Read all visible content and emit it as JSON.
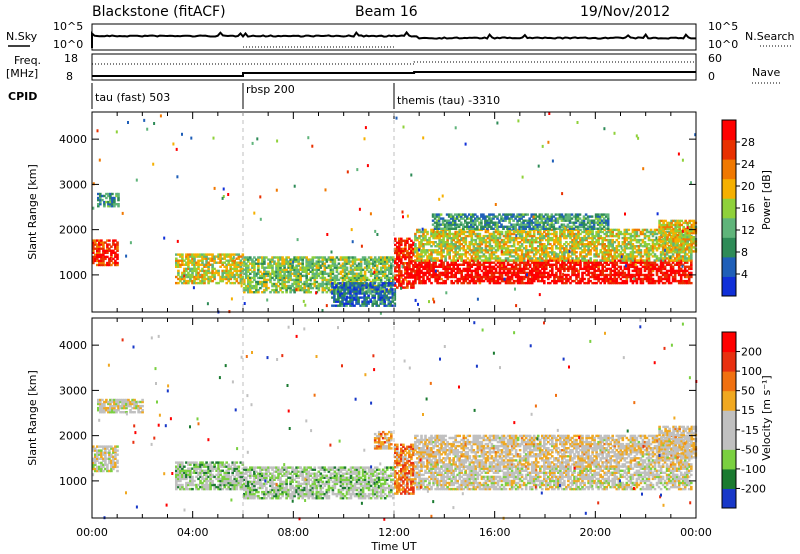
{
  "header": {
    "site": "Blackstone (fitACF)",
    "beam": "Beam 16",
    "date": "19/Nov/2012"
  },
  "nsky_panel": {
    "left_label": "N.Sky",
    "right_label": "N.Search",
    "left_ticks": [
      "10^5",
      "10^0"
    ],
    "right_ticks": [
      "10^5",
      "10^0"
    ]
  },
  "freq_panel": {
    "left_label_1": "Freq.",
    "left_label_2": "[MHz]",
    "right_label": "Nave",
    "left_ticks": [
      "18",
      "8"
    ],
    "right_ticks": [
      "60",
      "0"
    ]
  },
  "cpid": {
    "label": "CPID",
    "segments": [
      {
        "start_hour": 0,
        "text": "tau (fast) 503"
      },
      {
        "start_hour": 6,
        "text": "rbsp 200"
      },
      {
        "start_hour": 12,
        "text": "themis (tau) -3310"
      }
    ]
  },
  "colors": {
    "power_scale": [
      "#1030d8",
      "#1f5fb8",
      "#2e8b57",
      "#5fb47a",
      "#8fd13a",
      "#f5b000",
      "#f07800",
      "#e83000",
      "#ff0000"
    ],
    "velocity_scale": [
      "#1838c8",
      "#1a7a30",
      "#7ad040",
      "#c0c0c0",
      "#c0c0c0",
      "#f0a820",
      "#f07010",
      "#e83010",
      "#ff0000"
    ]
  },
  "chart_data": [
    {
      "type": "heatmap",
      "name": "power",
      "title": "",
      "xlabel": "Time UT",
      "ylabel": "Slant Range [km]",
      "x_ticks": [
        "00:00",
        "04:00",
        "08:00",
        "12:00",
        "16:00",
        "20:00",
        "00:00"
      ],
      "y_ticks": [
        "1000",
        "2000",
        "3000",
        "4000"
      ],
      "xlim_hours": [
        0,
        24
      ],
      "ylim_km": [
        180,
        4600
      ],
      "colorbar": {
        "label": "Power [dB]",
        "tick_labels": [
          "28",
          "24",
          "20",
          "16",
          "12",
          "8",
          "4"
        ]
      },
      "regions": [
        {
          "t0": 0.0,
          "t1": 1.0,
          "r0": 1200,
          "r1": 1750,
          "level": 0.85
        },
        {
          "t0": 0.2,
          "t1": 1.0,
          "r0": 2500,
          "r1": 2800,
          "level": 0.3
        },
        {
          "t0": 3.3,
          "t1": 6.0,
          "r0": 800,
          "r1": 1450,
          "level": 0.55
        },
        {
          "t0": 6.0,
          "t1": 12.0,
          "r0": 600,
          "r1": 1400,
          "level": 0.45
        },
        {
          "t0": 9.5,
          "t1": 12.0,
          "r0": 300,
          "r1": 800,
          "level": 0.2
        },
        {
          "t0": 12.0,
          "t1": 12.8,
          "r0": 700,
          "r1": 1800,
          "level": 0.9
        },
        {
          "t0": 12.8,
          "t1": 23.8,
          "r0": 800,
          "r1": 1300,
          "level": 0.95
        },
        {
          "t0": 12.8,
          "t1": 23.8,
          "r0": 1300,
          "r1": 2000,
          "level": 0.55
        },
        {
          "t0": 13.5,
          "t1": 20.5,
          "r0": 2000,
          "r1": 2350,
          "level": 0.3
        },
        {
          "t0": 22.5,
          "t1": 24.0,
          "r0": 1500,
          "r1": 2200,
          "level": 0.6
        }
      ]
    },
    {
      "type": "heatmap",
      "name": "velocity",
      "title": "",
      "xlabel": "Time UT",
      "ylabel": "Slant Range [km]",
      "x_ticks": [
        "00:00",
        "04:00",
        "08:00",
        "12:00",
        "16:00",
        "20:00",
        "00:00"
      ],
      "y_ticks": [
        "1000",
        "2000",
        "3000",
        "4000"
      ],
      "xlim_hours": [
        0,
        24
      ],
      "ylim_km": [
        180,
        4600
      ],
      "colorbar": {
        "label": "Velocity [m s⁻¹]",
        "tick_labels": [
          "200",
          "100",
          "50",
          "15",
          "-15",
          "-50",
          "-100",
          "-200"
        ]
      },
      "regions": [
        {
          "t0": 0.0,
          "t1": 1.0,
          "r0": 1200,
          "r1": 1750,
          "level": 0.45
        },
        {
          "t0": 0.2,
          "t1": 2.0,
          "r0": 2500,
          "r1": 2800,
          "level": 0.45
        },
        {
          "t0": 3.3,
          "t1": 6.0,
          "r0": 800,
          "r1": 1400,
          "level": 0.35
        },
        {
          "t0": 6.0,
          "t1": 12.0,
          "r0": 600,
          "r1": 1300,
          "level": 0.35
        },
        {
          "t0": 11.2,
          "t1": 11.9,
          "r0": 1700,
          "r1": 2100,
          "level": 0.65
        },
        {
          "t0": 12.0,
          "t1": 12.8,
          "r0": 700,
          "r1": 1800,
          "level": 0.7
        },
        {
          "t0": 12.8,
          "t1": 23.8,
          "r0": 800,
          "r1": 1300,
          "level": 0.45
        },
        {
          "t0": 12.8,
          "t1": 23.8,
          "r0": 1300,
          "r1": 2000,
          "level": 0.5
        },
        {
          "t0": 22.5,
          "t1": 24.0,
          "r0": 1500,
          "r1": 2200,
          "level": 0.5
        }
      ]
    }
  ]
}
